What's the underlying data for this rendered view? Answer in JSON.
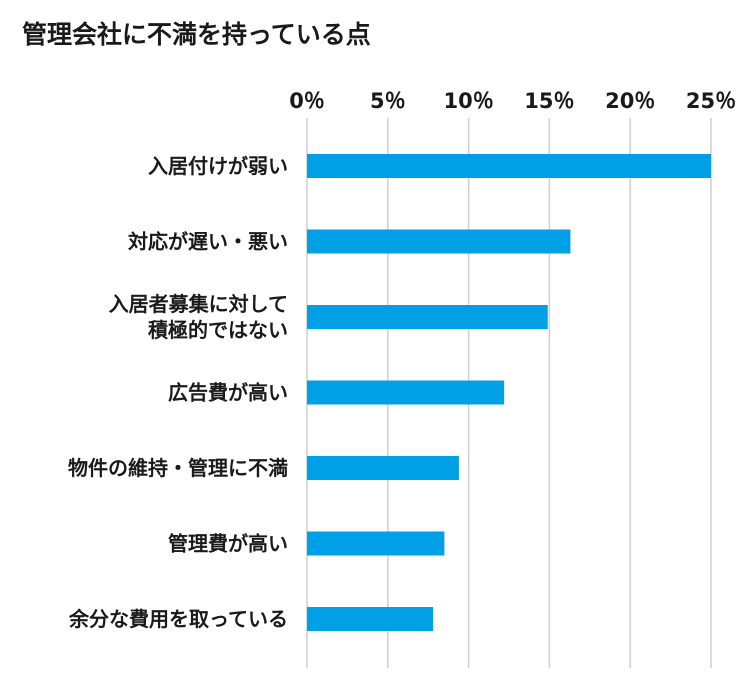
{
  "chart_data": {
    "type": "bar",
    "orientation": "horizontal",
    "title": "管理会社に不満を持っている点",
    "xlabel": "",
    "ylabel": "",
    "xlim": [
      0,
      25
    ],
    "x_ticks": [
      0,
      5,
      10,
      15,
      20,
      25
    ],
    "x_tick_labels": [
      "0％",
      "5％",
      "10％",
      "15％",
      "20％",
      "25％"
    ],
    "grid": true,
    "bar_color": "#00a0e6",
    "grid_color": "#cfcfcf",
    "categories": [
      [
        "入居付けが弱い"
      ],
      [
        "対応が遅い・悪い"
      ],
      [
        "入居者募集に対して",
        "積極的ではない"
      ],
      [
        "広告費が高い"
      ],
      [
        "物件の維持・管理に不満"
      ],
      [
        "管理費が高い"
      ],
      [
        "余分な費用を取っている"
      ]
    ],
    "values": [
      25,
      16.3,
      14.9,
      12.2,
      9.4,
      8.5,
      7.8
    ]
  }
}
